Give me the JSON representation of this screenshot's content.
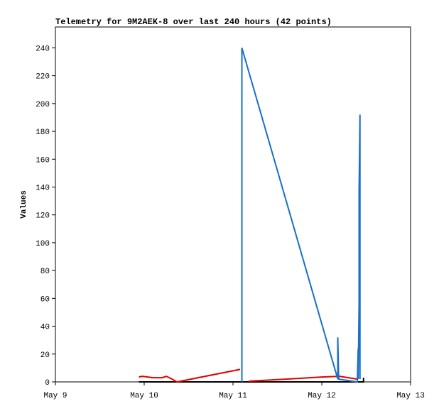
{
  "chart_data": {
    "type": "line",
    "title": "Telemetry for 9M2AEK-8 over last 240 hours (42 points)",
    "y_label": "Values",
    "xlim": [
      0,
      4
    ],
    "xticks": [
      {
        "value": 0,
        "label": "May 9"
      },
      {
        "value": 1,
        "label": "May 10"
      },
      {
        "value": 2,
        "label": "May 11"
      },
      {
        "value": 3,
        "label": "May 12"
      },
      {
        "value": 4,
        "label": "May 13"
      }
    ],
    "ylim": [
      0,
      255
    ],
    "yticks": [
      0,
      20,
      40,
      60,
      80,
      100,
      120,
      140,
      160,
      180,
      200,
      220,
      240
    ],
    "series": [
      {
        "color": "#000000",
        "x": [
          0.94,
          3.47,
          3.47
        ],
        "values": [
          0,
          0,
          3
        ]
      },
      {
        "color": "#e00000",
        "x": [
          0.94,
          0.98,
          1.1,
          1.2,
          1.25,
          1.3,
          1.37,
          2.08,
          null,
          2.18,
          2.6,
          3.0,
          3.2,
          3.4
        ],
        "values": [
          3.5,
          4,
          3,
          3,
          4,
          2.5,
          0,
          9,
          null,
          0.5,
          2,
          3.5,
          4,
          2
        ]
      },
      {
        "color": "#1a6fc8",
        "x": [
          2.1,
          2.1,
          3.18,
          3.18,
          3.19,
          3.4,
          3.41,
          3.41,
          3.42,
          3.42,
          3.43,
          3.43
        ],
        "values": [
          0,
          240,
          2,
          32,
          2,
          0,
          24,
          2,
          56,
          137,
          192,
          2
        ]
      }
    ]
  }
}
